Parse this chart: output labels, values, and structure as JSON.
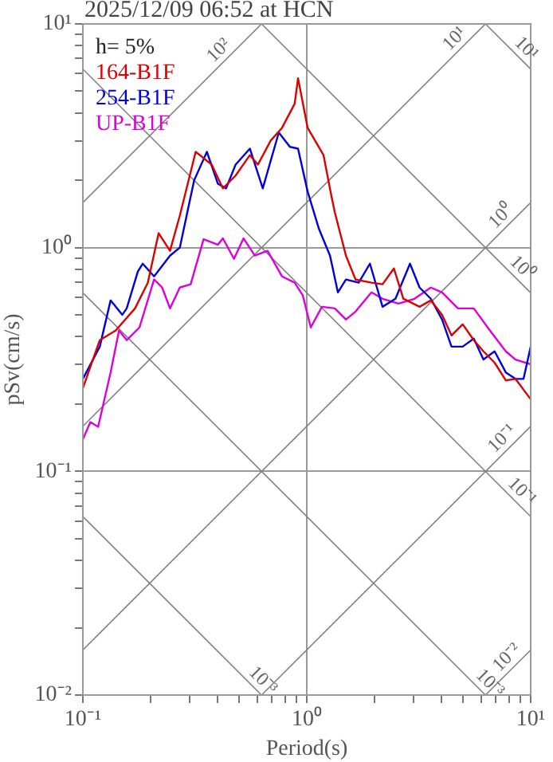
{
  "chart_data": {
    "type": "line",
    "title": "2025/12/09 06:52 at HCN",
    "xlabel": "Period(s)",
    "ylabel": "pSv(cm/s)",
    "legend_title": "h= 5%",
    "legend": "top left",
    "log": "xy",
    "grid": true,
    "xlim": [
      0.1,
      10
    ],
    "ylim": [
      0.01,
      10
    ],
    "xticks": [
      {
        "value": 0.1,
        "label": "10⁻¹"
      },
      {
        "value": 0.2,
        "label": null
      },
      {
        "value": 0.3,
        "label": null
      },
      {
        "value": 0.4,
        "label": null
      },
      {
        "value": 0.5,
        "label": null
      },
      {
        "value": 0.6,
        "label": null
      },
      {
        "value": 0.7,
        "label": null
      },
      {
        "value": 0.8,
        "label": null
      },
      {
        "value": 0.9,
        "label": null
      },
      {
        "value": 1,
        "label": "10⁰"
      },
      {
        "value": 2,
        "label": null
      },
      {
        "value": 3,
        "label": null
      },
      {
        "value": 4,
        "label": null
      },
      {
        "value": 5,
        "label": null
      },
      {
        "value": 6,
        "label": null
      },
      {
        "value": 7,
        "label": null
      },
      {
        "value": 8,
        "label": null
      },
      {
        "value": 9,
        "label": null
      },
      {
        "value": 10,
        "label": "10¹"
      }
    ],
    "yticks": [
      {
        "value": 0.01,
        "label": "10⁻²"
      },
      {
        "value": 0.02,
        "label": null
      },
      {
        "value": 0.03,
        "label": null
      },
      {
        "value": 0.04,
        "label": null
      },
      {
        "value": 0.05,
        "label": null
      },
      {
        "value": 0.06,
        "label": null
      },
      {
        "value": 0.07,
        "label": null
      },
      {
        "value": 0.08,
        "label": null
      },
      {
        "value": 0.09,
        "label": null
      },
      {
        "value": 0.1,
        "label": "10⁻¹"
      },
      {
        "value": 0.2,
        "label": null
      },
      {
        "value": 0.3,
        "label": null
      },
      {
        "value": 0.4,
        "label": null
      },
      {
        "value": 0.5,
        "label": null
      },
      {
        "value": 0.6,
        "label": null
      },
      {
        "value": 0.7,
        "label": null
      },
      {
        "value": 0.8,
        "label": null
      },
      {
        "value": 0.9,
        "label": null
      },
      {
        "value": 1,
        "label": "10⁰"
      },
      {
        "value": 2,
        "label": null
      },
      {
        "value": 3,
        "label": null
      },
      {
        "value": 4,
        "label": null
      },
      {
        "value": 5,
        "label": null
      },
      {
        "value": 6,
        "label": null
      },
      {
        "value": 7,
        "label": null
      },
      {
        "value": 8,
        "label": null
      },
      {
        "value": 9,
        "label": null
      },
      {
        "value": 10,
        "label": "10¹"
      }
    ],
    "series": [
      {
        "name": "164-B1F",
        "color": "#dd0000",
        "x": [
          0.1,
          0.119,
          0.14,
          0.171,
          0.195,
          0.218,
          0.245,
          0.271,
          0.319,
          0.376,
          0.422,
          0.481,
          0.557,
          0.605,
          0.69,
          0.775,
          0.883,
          0.914,
          1.009,
          1.188,
          1.29,
          1.334,
          1.496,
          1.652,
          1.945,
          2.18,
          2.45,
          2.7,
          3.19,
          3.58,
          4.02,
          4.43,
          4.97,
          5.57,
          6.15,
          6.9,
          7.74,
          8.55,
          10
        ],
        "values": [
          0.235,
          0.386,
          0.426,
          0.535,
          0.697,
          1.16,
          0.968,
          1.39,
          2.68,
          2.35,
          1.84,
          2.1,
          2.59,
          2.35,
          3.01,
          3.43,
          4.4,
          5.71,
          3.43,
          2.59,
          1.69,
          1.44,
          0.921,
          0.72,
          0.697,
          0.686,
          0.807,
          0.591,
          0.544,
          0.581,
          0.501,
          0.405,
          0.454,
          0.386,
          0.344,
          0.306,
          0.255,
          0.259,
          0.21
        ]
      },
      {
        "name": "254-B1F",
        "color": "#0000dd",
        "x": [
          0.1,
          0.119,
          0.133,
          0.15,
          0.157,
          0.176,
          0.185,
          0.208,
          0.245,
          0.271,
          0.314,
          0.358,
          0.401,
          0.436,
          0.481,
          0.557,
          0.636,
          0.75,
          0.841,
          0.914,
          1.009,
          1.131,
          1.27,
          1.377,
          1.496,
          1.706,
          1.914,
          2.18,
          2.49,
          2.89,
          3.19,
          3.58,
          4.02,
          4.43,
          4.97,
          5.57,
          6.15,
          6.9,
          7.74,
          8.55,
          9.29,
          10
        ],
        "values": [
          0.259,
          0.361,
          0.581,
          0.501,
          0.535,
          0.782,
          0.848,
          0.744,
          0.921,
          1.0,
          2.0,
          2.68,
          1.93,
          1.84,
          2.35,
          2.77,
          1.84,
          3.27,
          2.82,
          2.77,
          1.78,
          1.22,
          0.921,
          0.631,
          0.72,
          0.697,
          0.848,
          0.544,
          0.591,
          0.848,
          0.663,
          0.591,
          0.477,
          0.361,
          0.361,
          0.392,
          0.316,
          0.344,
          0.277,
          0.259,
          0.259,
          0.361
        ]
      },
      {
        "name": "UP-B1F",
        "color": "#dd00dd",
        "x": [
          0.1,
          0.108,
          0.117,
          0.133,
          0.145,
          0.157,
          0.179,
          0.208,
          0.226,
          0.245,
          0.271,
          0.303,
          0.346,
          0.401,
          0.422,
          0.473,
          0.522,
          0.586,
          0.668,
          0.775,
          0.883,
          0.96,
          1.042,
          1.169,
          1.334,
          1.496,
          1.652,
          1.945,
          2.18,
          2.57,
          3.03,
          3.58,
          4.02,
          4.73,
          5.57,
          6.58,
          7.74,
          8.55,
          10
        ],
        "values": [
          0.139,
          0.166,
          0.158,
          0.277,
          0.426,
          0.386,
          0.44,
          0.72,
          0.663,
          0.535,
          0.663,
          0.686,
          1.09,
          1.03,
          1.1,
          0.891,
          1.1,
          0.921,
          0.968,
          0.744,
          0.697,
          0.611,
          0.44,
          0.544,
          0.535,
          0.477,
          0.518,
          0.631,
          0.591,
          0.562,
          0.591,
          0.663,
          0.631,
          0.535,
          0.535,
          0.426,
          0.344,
          0.316,
          0.301
        ]
      },
      {
        "color": "#808080",
        "x": [
          0.1,
          0.628
        ],
        "values": [
          1.59,
          10
        ]
      },
      {
        "color": "#808080",
        "x": [
          0.1,
          6.28
        ],
        "values": [
          0.159,
          10
        ]
      },
      {
        "color": "#808080",
        "x": [
          0.1,
          10
        ],
        "values": [
          0.0159,
          1.59
        ]
      },
      {
        "color": "#808080",
        "x": [
          0.628,
          10
        ],
        "values": [
          0.01,
          0.159
        ]
      },
      {
        "color": "#808080",
        "x": [
          6.28,
          10
        ],
        "values": [
          0.01,
          0.0159
        ]
      },
      {
        "color": "#808080",
        "x": [
          6.28,
          10
        ],
        "values": [
          10,
          6.28
        ]
      },
      {
        "color": "#808080",
        "x": [
          0.628,
          10
        ],
        "values": [
          10,
          0.628
        ]
      },
      {
        "color": "#808080",
        "x": [
          0.1,
          10
        ],
        "values": [
          6.28,
          0.0628
        ]
      },
      {
        "color": "#808080",
        "x": [
          0.1,
          6.28
        ],
        "values": [
          0.628,
          0.01
        ]
      },
      {
        "color": "#808080",
        "x": [
          0.1,
          0.628
        ],
        "values": [
          0.0628,
          0.01
        ]
      }
    ],
    "annotations": [
      {
        "text": "10²",
        "x": 0.44,
        "y": 7.0
      },
      {
        "text": "10¹",
        "x": 4.97,
        "y": 7.91
      },
      {
        "text": "10¹",
        "x": 8.8,
        "y": 7.14
      },
      {
        "text": "10⁰",
        "x": 8.0,
        "y": 1.27
      },
      {
        "text": "10⁰",
        "x": 8.4,
        "y": 0.748
      },
      {
        "text": "10⁻¹",
        "x": 8.1,
        "y": 0.129
      },
      {
        "text": "10⁻¹",
        "x": 8.4,
        "y": 0.0748
      },
      {
        "text": "10⁻²",
        "x": 8.5,
        "y": 0.01353
      },
      {
        "text": "10⁻³",
        "x": 6.05,
        "y": 0.0104
      },
      {
        "text": "10⁻³",
        "x": 0.586,
        "y": 0.0107
      }
    ]
  }
}
